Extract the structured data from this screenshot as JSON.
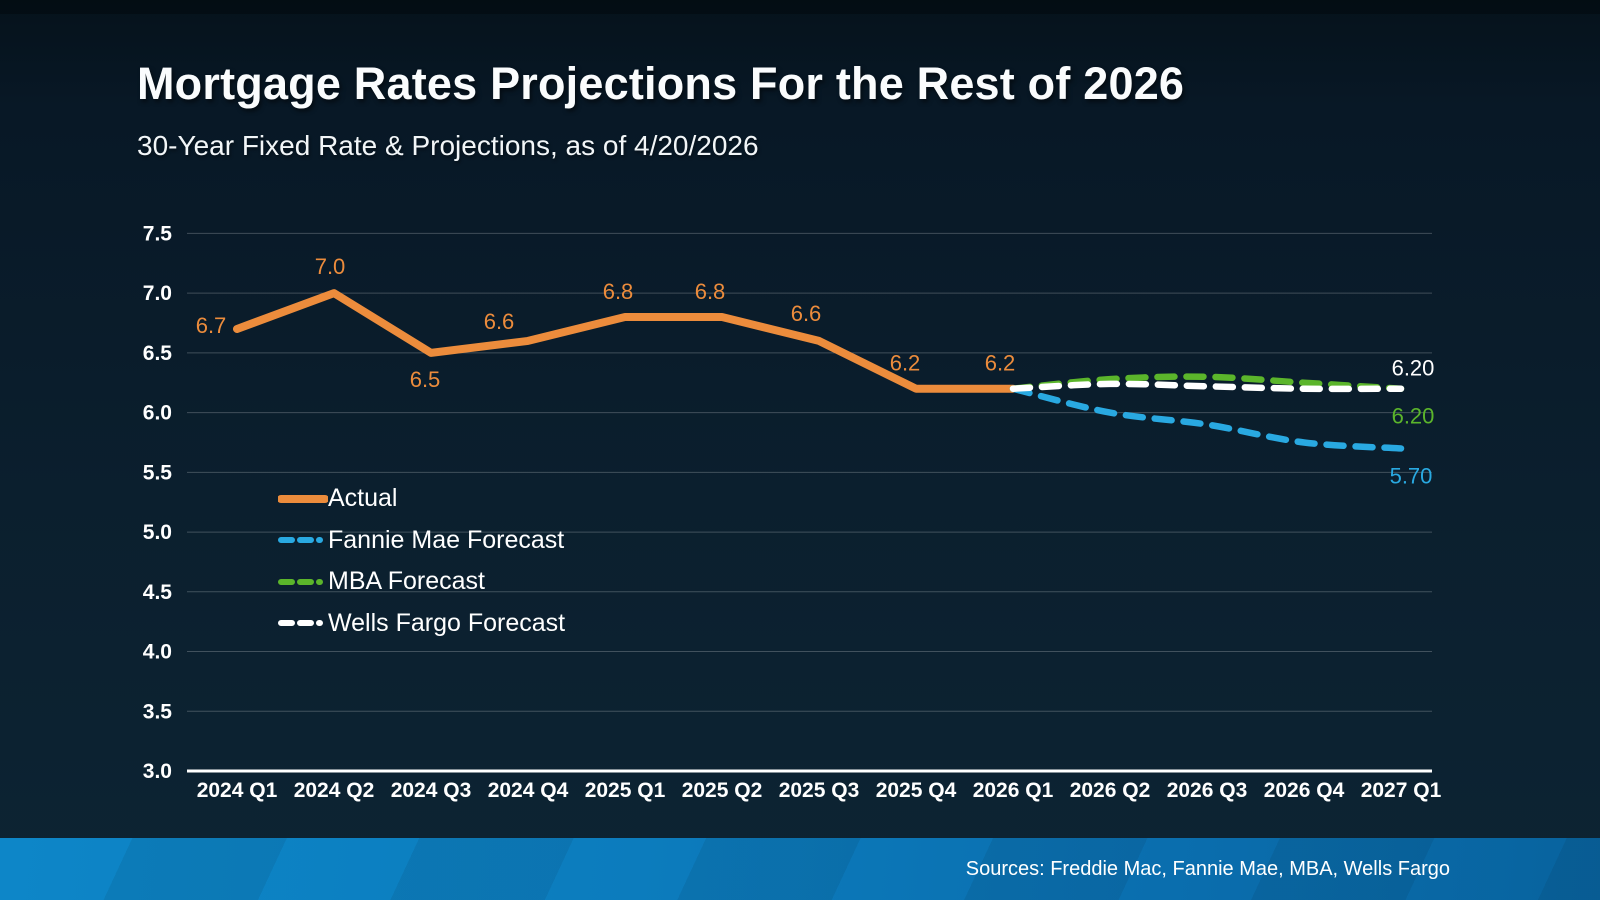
{
  "header": {
    "title": "Mortgage Rates Projections For the Rest of 2026",
    "subtitle": "30-Year Fixed Rate & Projections, as of 4/20/2026"
  },
  "footer": {
    "sources": "Sources: Freddie Mac, Fannie Mae, MBA, Wells Fargo"
  },
  "colors": {
    "background": "#0B1F2E",
    "accent_orange": "#EC8C3C",
    "accent_blue": "#29A9E1",
    "accent_green": "#5BB52B",
    "forecast_white": "#FFFFFF",
    "footer_blue": "#0C80C3",
    "gridline": "rgba(255,255,255,0.22)"
  },
  "chart_data": {
    "type": "line",
    "title": "Mortgage Rates Projections For the Rest of 2026",
    "xlabel": "",
    "ylabel": "",
    "grid": true,
    "legend_position": "inside-left",
    "ylim": [
      3.0,
      7.5
    ],
    "ytick_step": 0.5,
    "categories": [
      "2024 Q1",
      "2024 Q2",
      "2024 Q3",
      "2024 Q4",
      "2025 Q1",
      "2025 Q2",
      "2025 Q3",
      "2025 Q4",
      "2026 Q1",
      "2026 Q2",
      "2026 Q3",
      "2026 Q4",
      "2027 Q1"
    ],
    "series": [
      {
        "name": "Actual",
        "color": "#EC8C3C",
        "style": "solid",
        "start_index": 0,
        "values": [
          6.7,
          7.0,
          6.5,
          6.6,
          6.8,
          6.8,
          6.6,
          6.2,
          6.2
        ],
        "point_labels": [
          {
            "text": "6.7",
            "dx": -26,
            "dy": -3
          },
          {
            "text": "7.0",
            "dx": -4,
            "dy": -26
          },
          {
            "text": "6.5",
            "dx": -6,
            "dy": 27
          },
          {
            "text": "6.6",
            "dx": -29,
            "dy": -19
          },
          {
            "text": "6.8",
            "dx": -7,
            "dy": -25
          },
          {
            "text": "6.8",
            "dx": -12,
            "dy": -25
          },
          {
            "text": "6.6",
            "dx": -13,
            "dy": -27
          },
          {
            "text": "6.2",
            "dx": -11,
            "dy": -25
          },
          {
            "text": "6.2",
            "dx": -13,
            "dy": -25
          }
        ]
      },
      {
        "name": "Fannie Mae Forecast",
        "color": "#29A9E1",
        "style": "dashed",
        "start_index": 8,
        "values": [
          6.2,
          6.0,
          5.9,
          5.75,
          5.7
        ],
        "end_label": {
          "text": "5.70",
          "dx": 10,
          "dy": 28
        }
      },
      {
        "name": "MBA Forecast",
        "color": "#5BB52B",
        "style": "dashed",
        "start_index": 8,
        "values": [
          6.2,
          6.28,
          6.3,
          6.25,
          6.2
        ],
        "end_label": {
          "text": "6.20",
          "dx": 12,
          "dy": 28
        }
      },
      {
        "name": "Wells Fargo Forecast",
        "color": "#FFFFFF",
        "style": "dashed",
        "start_index": 8,
        "values": [
          6.2,
          6.24,
          6.22,
          6.2,
          6.2
        ],
        "end_label": {
          "text": "6.20",
          "dx": 12,
          "dy": -20
        }
      }
    ]
  }
}
